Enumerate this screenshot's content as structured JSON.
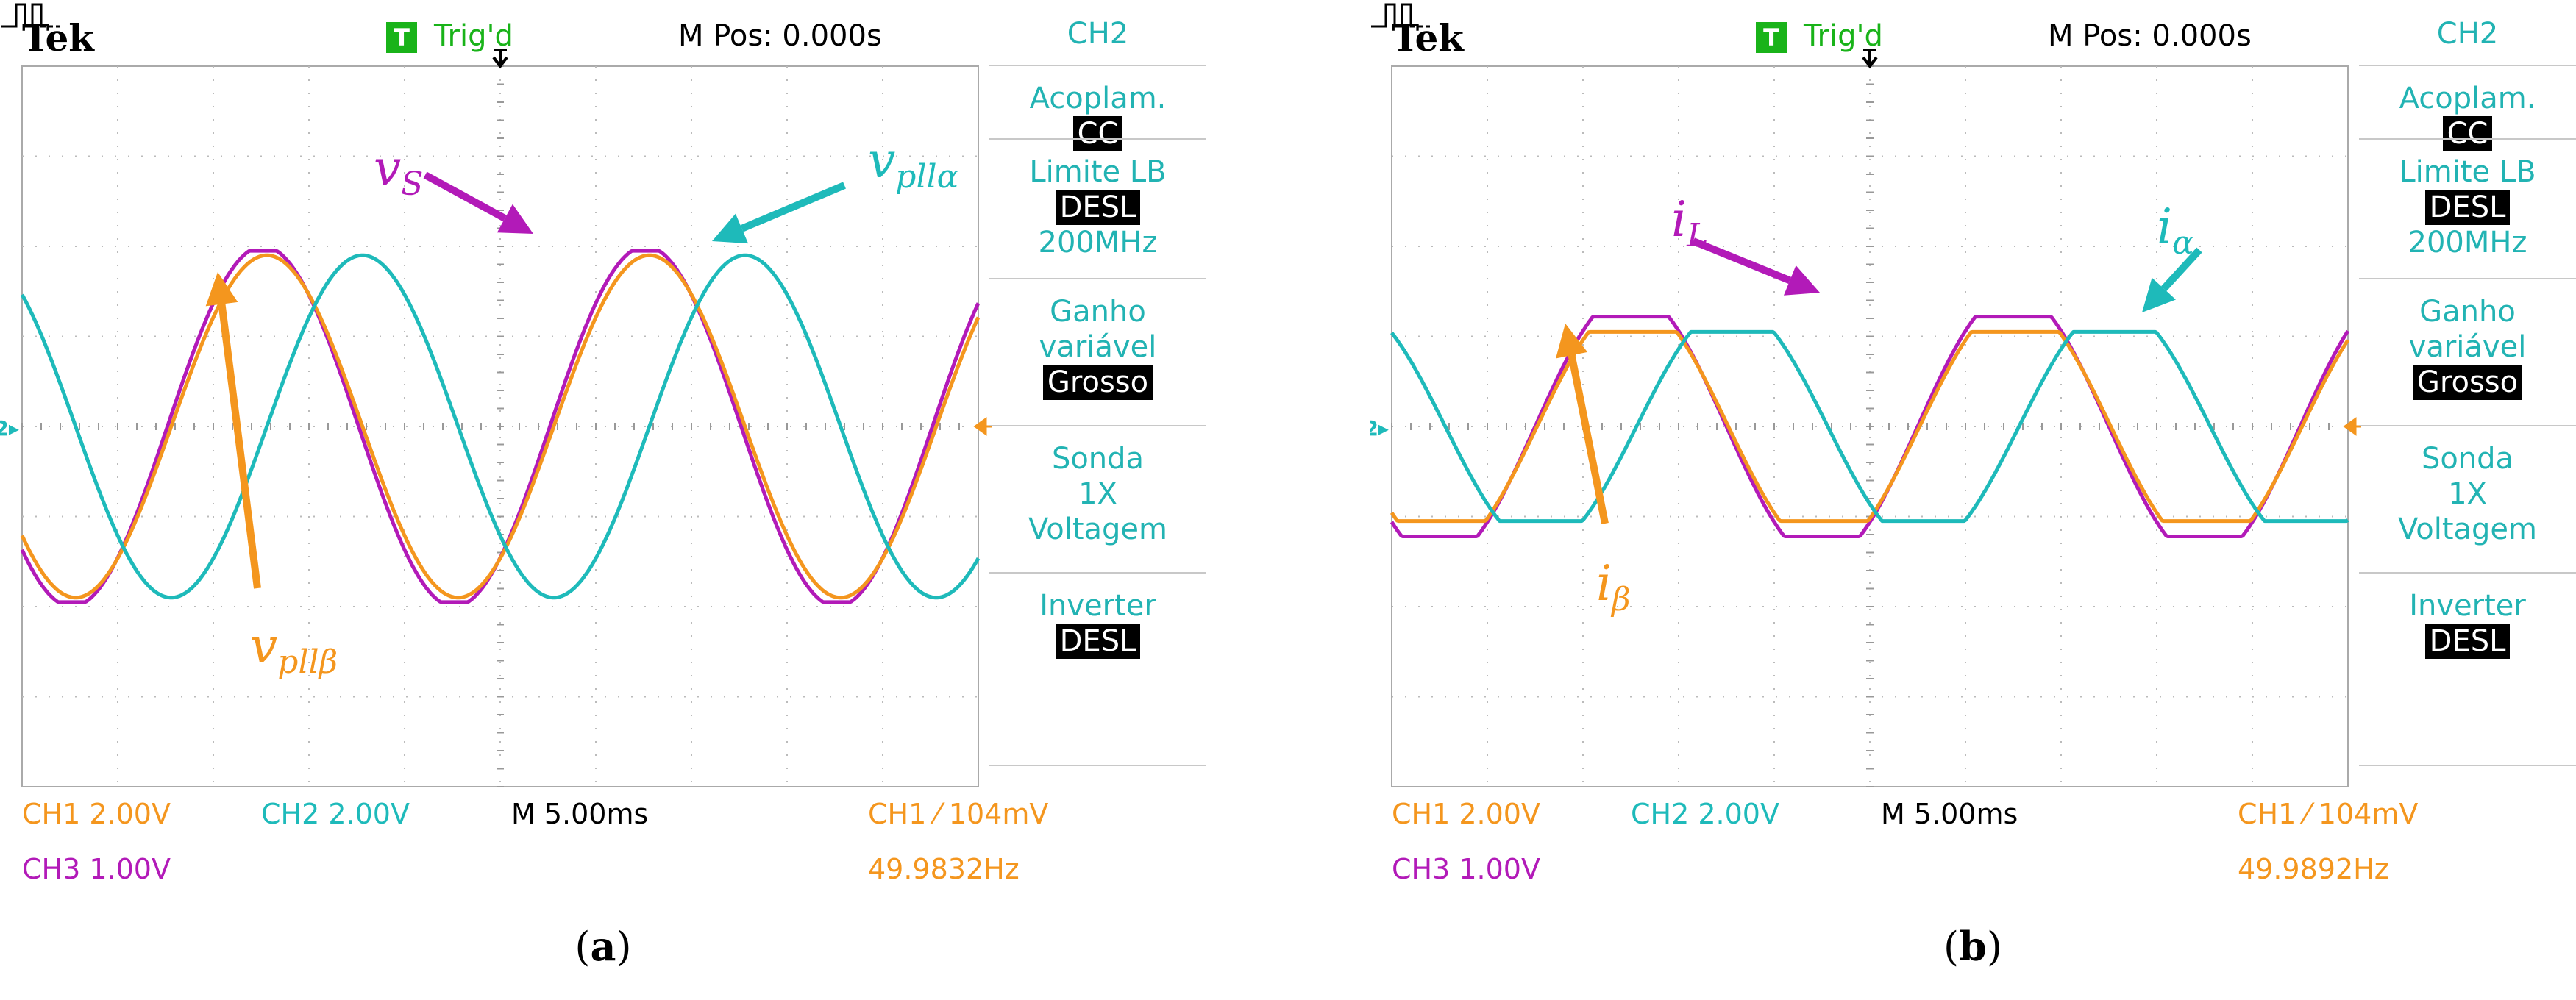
{
  "panels": [
    {
      "header": {
        "brand": "Tek",
        "trig_box": "T",
        "trig_status": "Trig'd",
        "m_pos": "M Pos: 0.000s"
      },
      "sidebar": {
        "channel": "CH2",
        "groups": [
          {
            "label": "Acoplam.",
            "value": "CC"
          },
          {
            "label": "Limite LB",
            "value": "DESL",
            "extra": "200MHz"
          },
          {
            "label": "Ganho\nvariável",
            "value": "Grosso"
          },
          {
            "label": "Sonda\n1X\nVoltagem",
            "value": ""
          },
          {
            "label": "Inverter",
            "value": "DESL"
          }
        ]
      },
      "footer": {
        "ch1": "CH1  2.00V",
        "ch2": "CH2  2.00V",
        "ch3": "CH3  1.00V",
        "timebase": "M 5.00ms",
        "trigger": "CH1 ⁄ 104mV",
        "freq": "49.9832Hz"
      },
      "annotations": [
        {
          "main": "v",
          "sub": "S",
          "color": "#b21ab8"
        },
        {
          "main": "v",
          "sub": "pllα",
          "color": "#1ebaba"
        },
        {
          "main": "v",
          "sub": "pllβ",
          "color": "#f4961e"
        }
      ],
      "caption": {
        "open": "(",
        "letter": "a",
        "close": ")"
      }
    },
    {
      "header": {
        "brand": "Tek",
        "trig_box": "T",
        "trig_status": "Trig'd",
        "m_pos": "M Pos: 0.000s"
      },
      "sidebar": {
        "channel": "CH2",
        "groups": [
          {
            "label": "Acoplam.",
            "value": "CC"
          },
          {
            "label": "Limite LB",
            "value": "DESL",
            "extra": "200MHz"
          },
          {
            "label": "Ganho\nvariável",
            "value": "Grosso"
          },
          {
            "label": "Sonda\n1X\nVoltagem",
            "value": ""
          },
          {
            "label": "Inverter",
            "value": "DESL"
          }
        ]
      },
      "footer": {
        "ch1": "CH1  2.00V",
        "ch2": "CH2  2.00V",
        "ch3": "CH3  1.00V",
        "timebase": "M 5.00ms",
        "trigger": "CH1 ⁄ 104mV",
        "freq": "49.9892Hz"
      },
      "annotations": [
        {
          "main": "i",
          "sub": "L",
          "color": "#b21ab8"
        },
        {
          "main": "i",
          "sub": "α",
          "color": "#1ebaba"
        },
        {
          "main": "i",
          "sub": "β",
          "color": "#f4961e"
        }
      ],
      "caption": {
        "open": "(",
        "letter": "b",
        "close": ")"
      }
    }
  ],
  "chart_data": [
    {
      "type": "line",
      "xlim": [
        -25,
        25
      ],
      "ylim": [
        -4,
        4
      ],
      "x_unit": "ms",
      "y_unit": "div",
      "grid": true,
      "series": [
        {
          "name": "vS",
          "color": "#b21ab8",
          "shape": "clipped-sine",
          "amplitude": 2.0,
          "clip": 1.95,
          "phase_ms": 0.1,
          "period_ms": 20.0
        },
        {
          "name": "vpllβ",
          "color": "#f4961e",
          "shape": "sine",
          "amplitude": 1.9,
          "phase_ms": 0.3,
          "period_ms": 20.0
        },
        {
          "name": "vpllα",
          "color": "#1ebaba",
          "shape": "sine",
          "amplitude": 1.9,
          "phase_ms": 5.3,
          "period_ms": 20.0
        }
      ]
    },
    {
      "type": "line",
      "xlim": [
        -25,
        25
      ],
      "ylim": [
        -4,
        4
      ],
      "x_unit": "ms",
      "y_unit": "div",
      "grid": true,
      "series": [
        {
          "name": "iL",
          "color": "#b21ab8",
          "shape": "clipped-sine",
          "amplitude": 1.5,
          "clip": 1.22,
          "phase_ms": 0.0,
          "period_ms": 20.0
        },
        {
          "name": "iβ",
          "color": "#f4961e",
          "shape": "clipped-sine",
          "amplitude": 1.4,
          "clip": 1.05,
          "phase_ms": 0.1,
          "period_ms": 20.0
        },
        {
          "name": "iα",
          "color": "#1ebaba",
          "shape": "clipped-sine",
          "amplitude": 1.35,
          "clip": 1.05,
          "phase_ms": 5.3,
          "period_ms": 20.0
        }
      ]
    }
  ]
}
